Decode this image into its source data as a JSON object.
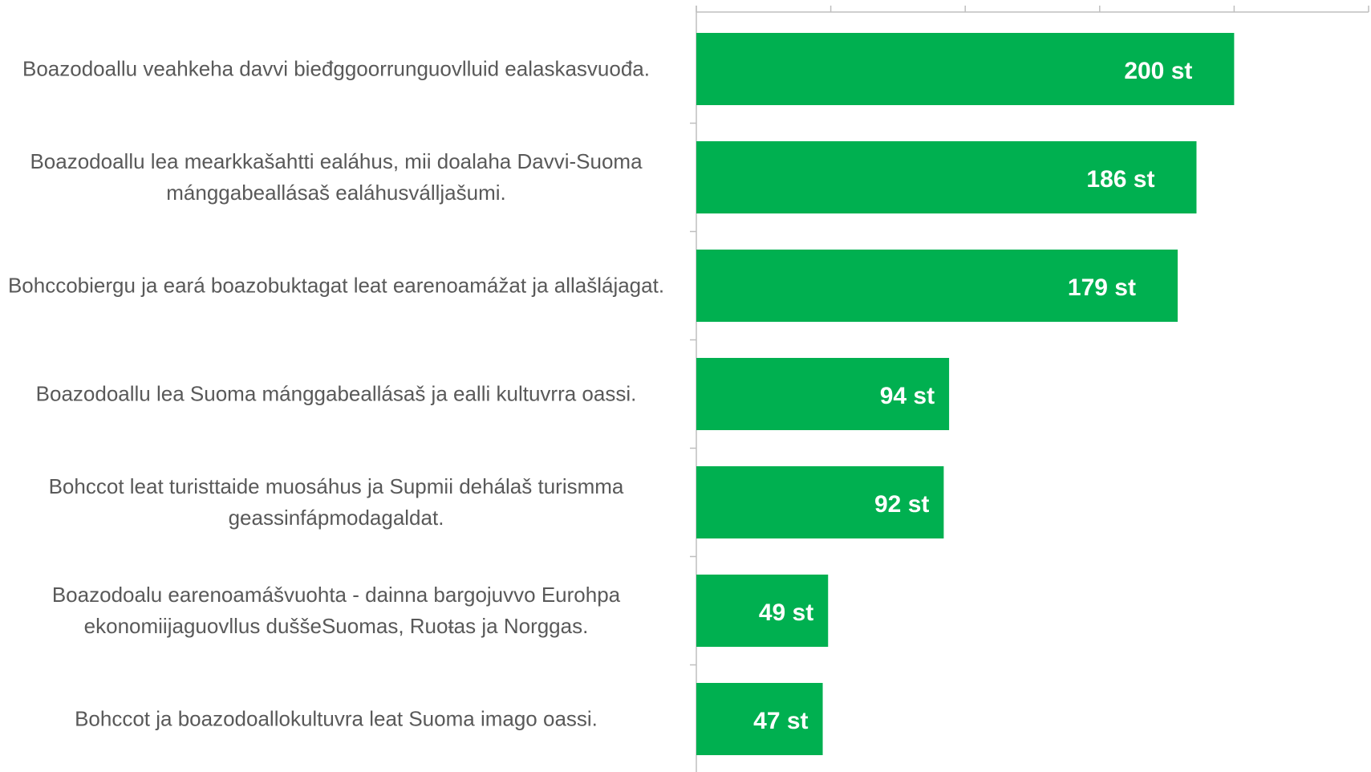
{
  "chart_data": {
    "type": "bar",
    "orientation": "horizontal",
    "categories": [
      "Boazodoallu veahkeha davvi bieđggoorrunguovlluid ealaskasvuođa.",
      "Boazodoallu lea mearkkašahtti ealáhus, mii doalaha Davvi-Suoma mánggabeallásaš ealáhusválljašumi.",
      "Bohccobiergu ja eará boazobuktagat leat earenoamážat ja allašlájagat.",
      "Boazodoallu lea Suoma mánggabeallásaš ja ealli kultuvrra oassi.",
      "Bohccot leat turisttaide muosáhus ja Supmii dehálaš turismma geassinfápmodagaldat.",
      "Boazodoalu earenoamášvuohta - dainna bargojuvvo Eurohpa ekonomiijaguovllus duššeSuomas, Ruoŧas ja Norggas.",
      "Bohccot ja boazodoallokultuvra leat Suoma imago oassi."
    ],
    "values": [
      200,
      186,
      179,
      94,
      92,
      49,
      47
    ],
    "value_labels": [
      "200 st",
      "186 st",
      "179 st",
      "94 st",
      "92 st",
      "49 st",
      "47 st"
    ],
    "color": "#00b050",
    "xlim": [
      0,
      250
    ],
    "xticks": [
      0,
      50,
      100,
      150,
      200,
      250
    ]
  }
}
